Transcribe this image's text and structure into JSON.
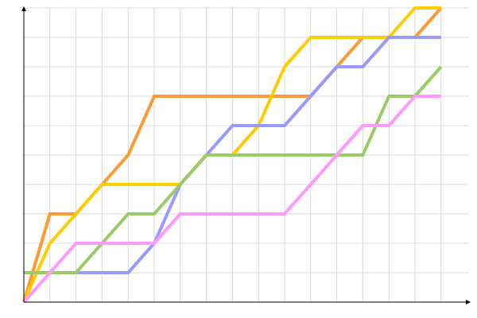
{
  "chart_data": {
    "type": "line",
    "title": "",
    "xlabel": "",
    "ylabel": "",
    "xlim": [
      0,
      17
    ],
    "ylim": [
      0,
      10
    ],
    "grid": true,
    "legend": "none",
    "series": [
      {
        "color": "#ff9933",
        "points": [
          [
            0,
            0
          ],
          [
            1,
            3
          ],
          [
            2,
            3
          ],
          [
            3,
            4
          ],
          [
            4,
            5
          ],
          [
            5,
            7
          ],
          [
            11,
            7
          ],
          [
            13,
            9
          ],
          [
            15,
            9
          ],
          [
            16,
            10
          ]
        ]
      },
      {
        "color": "#ffcc00",
        "points": [
          [
            0,
            0
          ],
          [
            1,
            2
          ],
          [
            2,
            3
          ],
          [
            3,
            4
          ],
          [
            6,
            4
          ],
          [
            7,
            5
          ],
          [
            8,
            5
          ],
          [
            9,
            6
          ],
          [
            10,
            8
          ],
          [
            11,
            9
          ],
          [
            14,
            9
          ],
          [
            15,
            10
          ],
          [
            16,
            10
          ]
        ]
      },
      {
        "color": "#9999ff",
        "points": [
          [
            0,
            1
          ],
          [
            4,
            1
          ],
          [
            5,
            2
          ],
          [
            6,
            4
          ],
          [
            7,
            5
          ],
          [
            8,
            6
          ],
          [
            10,
            6
          ],
          [
            11,
            7
          ],
          [
            12,
            8
          ],
          [
            13,
            8
          ],
          [
            14,
            9
          ],
          [
            16,
            9
          ]
        ]
      },
      {
        "color": "#99cc66",
        "points": [
          [
            0,
            1
          ],
          [
            2,
            1
          ],
          [
            4,
            3
          ],
          [
            5,
            3
          ],
          [
            6,
            4
          ],
          [
            7,
            5
          ],
          [
            13,
            5
          ],
          [
            14,
            7
          ],
          [
            15,
            7
          ],
          [
            16,
            8
          ]
        ]
      },
      {
        "color": "#ff99ff",
        "points": [
          [
            0,
            0
          ],
          [
            2,
            2
          ],
          [
            5,
            2
          ],
          [
            6,
            3
          ],
          [
            10,
            3
          ],
          [
            12,
            5
          ],
          [
            13,
            6
          ],
          [
            14,
            6
          ],
          [
            15,
            7
          ],
          [
            16,
            7
          ]
        ]
      }
    ]
  }
}
